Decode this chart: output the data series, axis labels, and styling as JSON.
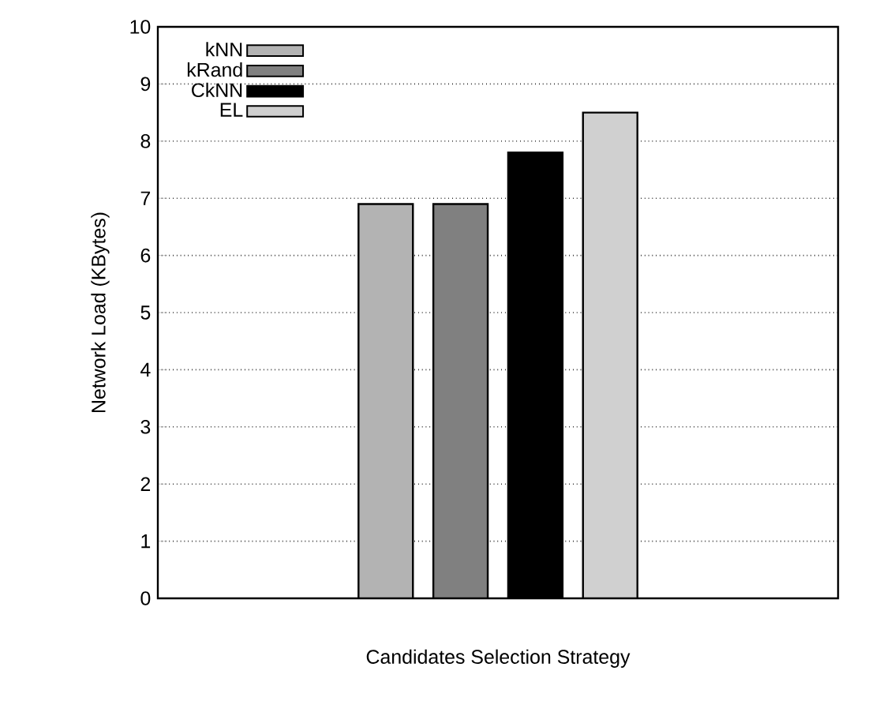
{
  "chart_data": {
    "type": "bar",
    "xlabel": "Candidates Selection Strategy",
    "ylabel": "Network Load (KBytes)",
    "categories": [
      null
    ],
    "series": [
      {
        "name": "kNN",
        "color": "#b3b3b3",
        "values": [
          6.9
        ]
      },
      {
        "name": "kRand",
        "color": "#808080",
        "values": [
          6.9
        ]
      },
      {
        "name": "CkNN",
        "color": "#000000",
        "values": [
          7.8
        ]
      },
      {
        "name": "EL",
        "color": "#d0d0d0",
        "values": [
          8.5
        ]
      }
    ],
    "ylim": [
      0,
      10
    ],
    "yticks": [
      0,
      1,
      2,
      3,
      4,
      5,
      6,
      7,
      8,
      9,
      10
    ],
    "grid": "y",
    "legend": "top left"
  }
}
